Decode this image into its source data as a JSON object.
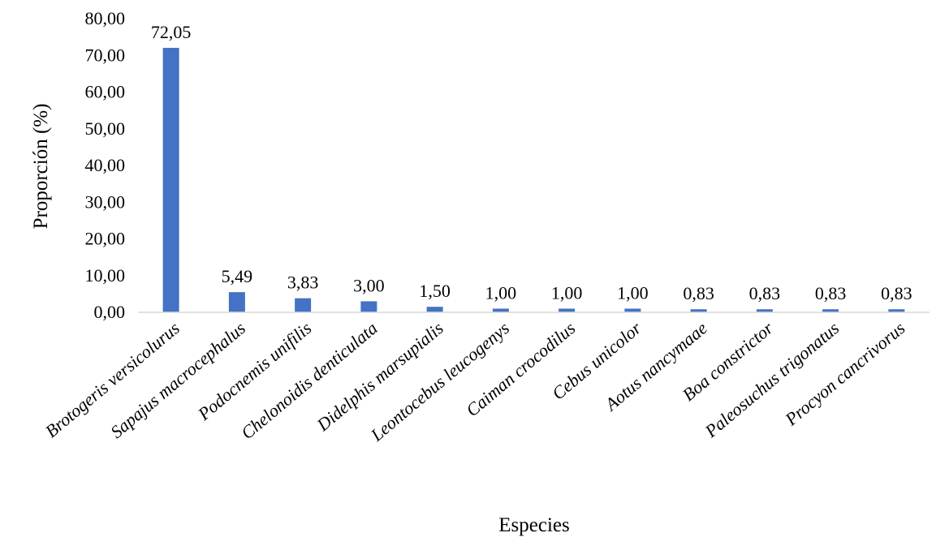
{
  "chart_data": {
    "type": "bar",
    "xlabel": "Especies",
    "ylabel": "Proporción (%)",
    "ylim": [
      0,
      80
    ],
    "yticks": [
      "0,00",
      "10,00",
      "20,00",
      "30,00",
      "40,00",
      "50,00",
      "60,00",
      "70,00",
      "80,00"
    ],
    "categories": [
      "Brotogeris versicolurus",
      "Sapajus macrocephalus",
      "Podocnemis unifilis",
      "Chelonoidis denticulata",
      "Didelphis marsupialis",
      "Leontocebus leucogenys",
      "Caiman crocodilus",
      "Cebus unicolor",
      "Aotus nancymaae",
      "Boa constrictor",
      "Paleosuchus trigonatus",
      "Procyon cancrivorus"
    ],
    "values": [
      72.05,
      5.49,
      3.83,
      3.0,
      1.5,
      1.0,
      1.0,
      1.0,
      0.83,
      0.83,
      0.83,
      0.83
    ],
    "data_labels": [
      "72,05",
      "5,49",
      "3,83",
      "3,00",
      "1,50",
      "1,00",
      "1,00",
      "1,00",
      "0,83",
      "0,83",
      "0,83",
      "0,83"
    ],
    "bar_color": "#4472C4",
    "axis_color": "#D9D9D9",
    "grid": false,
    "legend": "none"
  }
}
